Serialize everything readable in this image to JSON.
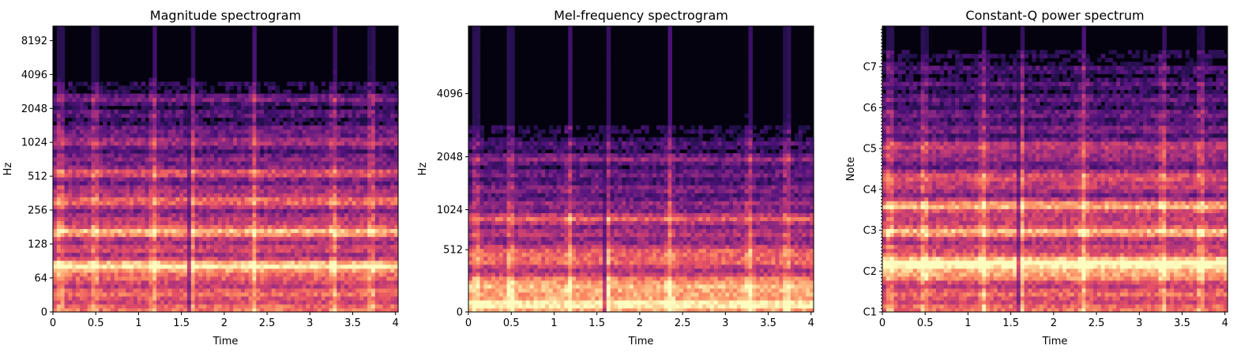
{
  "chart_data": [
    {
      "type": "heatmap",
      "title": "Magnitude spectrogram",
      "xlabel": "Time",
      "ylabel": "Hz",
      "xlim": [
        0,
        4.03
      ],
      "x_ticks": [
        "0",
        "0.5",
        "1",
        "1.5",
        "2",
        "2.5",
        "3",
        "3.5",
        "4"
      ],
      "y_scale": "log2",
      "y_ticks": [
        "0",
        "64",
        "128",
        "256",
        "512",
        "1024",
        "2048",
        "4096",
        "8192"
      ],
      "colormap": "magma",
      "onsets": [
        0.09,
        0.49,
        1.18,
        1.62,
        2.35,
        3.28,
        3.72
      ],
      "energy_bands": [
        {
          "freq": 80,
          "level": 0.92
        },
        {
          "freq": 170,
          "level": 0.78
        },
        {
          "freq": 320,
          "level": 0.6
        },
        {
          "freq": 560,
          "level": 0.5
        },
        {
          "freq": 1100,
          "level": 0.38
        },
        {
          "freq": 2500,
          "level": 0.25
        }
      ]
    },
    {
      "type": "heatmap",
      "title": "Mel-frequency spectrogram",
      "xlabel": "Time",
      "ylabel": "Hz",
      "xlim": [
        0,
        4.03
      ],
      "x_ticks": [
        "0",
        "0.5",
        "1",
        "1.5",
        "2",
        "2.5",
        "3",
        "3.5",
        "4"
      ],
      "y_scale": "mel",
      "y_ticks": [
        "0",
        "512",
        "1024",
        "2048",
        "4096"
      ],
      "colormap": "magma",
      "onsets": [
        0.09,
        0.49,
        1.18,
        1.62,
        2.35,
        3.28,
        3.72
      ],
      "energy_bands": [
        {
          "freq": 60,
          "level": 0.9
        },
        {
          "freq": 180,
          "level": 0.72
        },
        {
          "freq": 450,
          "level": 0.55
        },
        {
          "freq": 900,
          "level": 0.42
        },
        {
          "freq": 2000,
          "level": 0.25
        }
      ]
    },
    {
      "type": "heatmap",
      "title": "Constant-Q power spectrum",
      "xlabel": "Time",
      "ylabel": "Note",
      "xlim": [
        0,
        4.03
      ],
      "x_ticks": [
        "0",
        "0.5",
        "1",
        "1.5",
        "2",
        "2.5",
        "3",
        "3.5",
        "4"
      ],
      "y_scale": "note",
      "y_ticks": [
        "C1",
        "C2",
        "C3",
        "C4",
        "C5",
        "C6",
        "C7"
      ],
      "colormap": "magma",
      "onsets": [
        0.09,
        0.49,
        1.18,
        1.62,
        2.35,
        3.28,
        3.72
      ],
      "energy_bands": [
        {
          "note": "C2",
          "level": 0.7
        },
        {
          "note": "D#2",
          "level": 0.95
        },
        {
          "note": "C3",
          "level": 0.7
        },
        {
          "note": "G3",
          "level": 0.8
        },
        {
          "note": "D#4",
          "level": 0.55
        },
        {
          "note": "C5",
          "level": 0.5
        }
      ]
    }
  ]
}
